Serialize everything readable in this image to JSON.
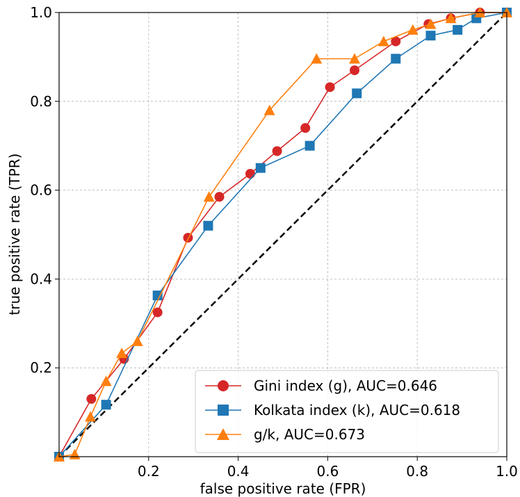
{
  "chart_data": {
    "type": "line",
    "title": "",
    "xlabel": "false positive rate (FPR)",
    "ylabel": "true positive rate (TPR)",
    "xlim": [
      0,
      1
    ],
    "ylim": [
      0,
      1
    ],
    "xticks": [
      0.2,
      0.4,
      0.6,
      0.8,
      1.0
    ],
    "yticks": [
      0.2,
      0.4,
      0.6,
      0.8,
      1.0
    ],
    "grid": true,
    "legend_position": "bottom-right",
    "diagonal": {
      "style": "dashed",
      "color": "#000000",
      "x": [
        0,
        1
      ],
      "y": [
        0,
        1
      ]
    },
    "series": [
      {
        "name": "Gini index (g), AUC=0.646",
        "color": "#d62728",
        "marker": "circle",
        "x": [
          0,
          0.072,
          0.145,
          0.22,
          0.288,
          0.358,
          0.427,
          0.487,
          0.55,
          0.605,
          0.66,
          0.752,
          0.825,
          0.875,
          0.94,
          1.0
        ],
        "y": [
          0,
          0.13,
          0.22,
          0.325,
          0.493,
          0.585,
          0.637,
          0.688,
          0.74,
          0.832,
          0.87,
          0.935,
          0.974,
          0.987,
          1.0,
          1.0
        ]
      },
      {
        "name": "Kolkata index (k), AUC=0.618",
        "color": "#1f77b4",
        "marker": "square",
        "x": [
          0,
          0.105,
          0.22,
          0.333,
          0.45,
          0.56,
          0.665,
          0.752,
          0.83,
          0.89,
          0.932,
          1.0
        ],
        "y": [
          0,
          0.117,
          0.363,
          0.52,
          0.65,
          0.7,
          0.818,
          0.896,
          0.948,
          0.961,
          0.987,
          1.0
        ]
      },
      {
        "name": "g/k, AUC=0.673",
        "color": "#ff7f0e",
        "marker": "triangle",
        "x": [
          0,
          0.035,
          0.07,
          0.105,
          0.14,
          0.175,
          0.335,
          0.47,
          0.575,
          0.66,
          0.725,
          0.79,
          0.83,
          0.875,
          0.94,
          1.0
        ],
        "y": [
          0,
          0.005,
          0.09,
          0.17,
          0.233,
          0.26,
          0.585,
          0.78,
          0.896,
          0.896,
          0.935,
          0.961,
          0.974,
          0.987,
          1.0,
          1.0
        ]
      }
    ]
  }
}
